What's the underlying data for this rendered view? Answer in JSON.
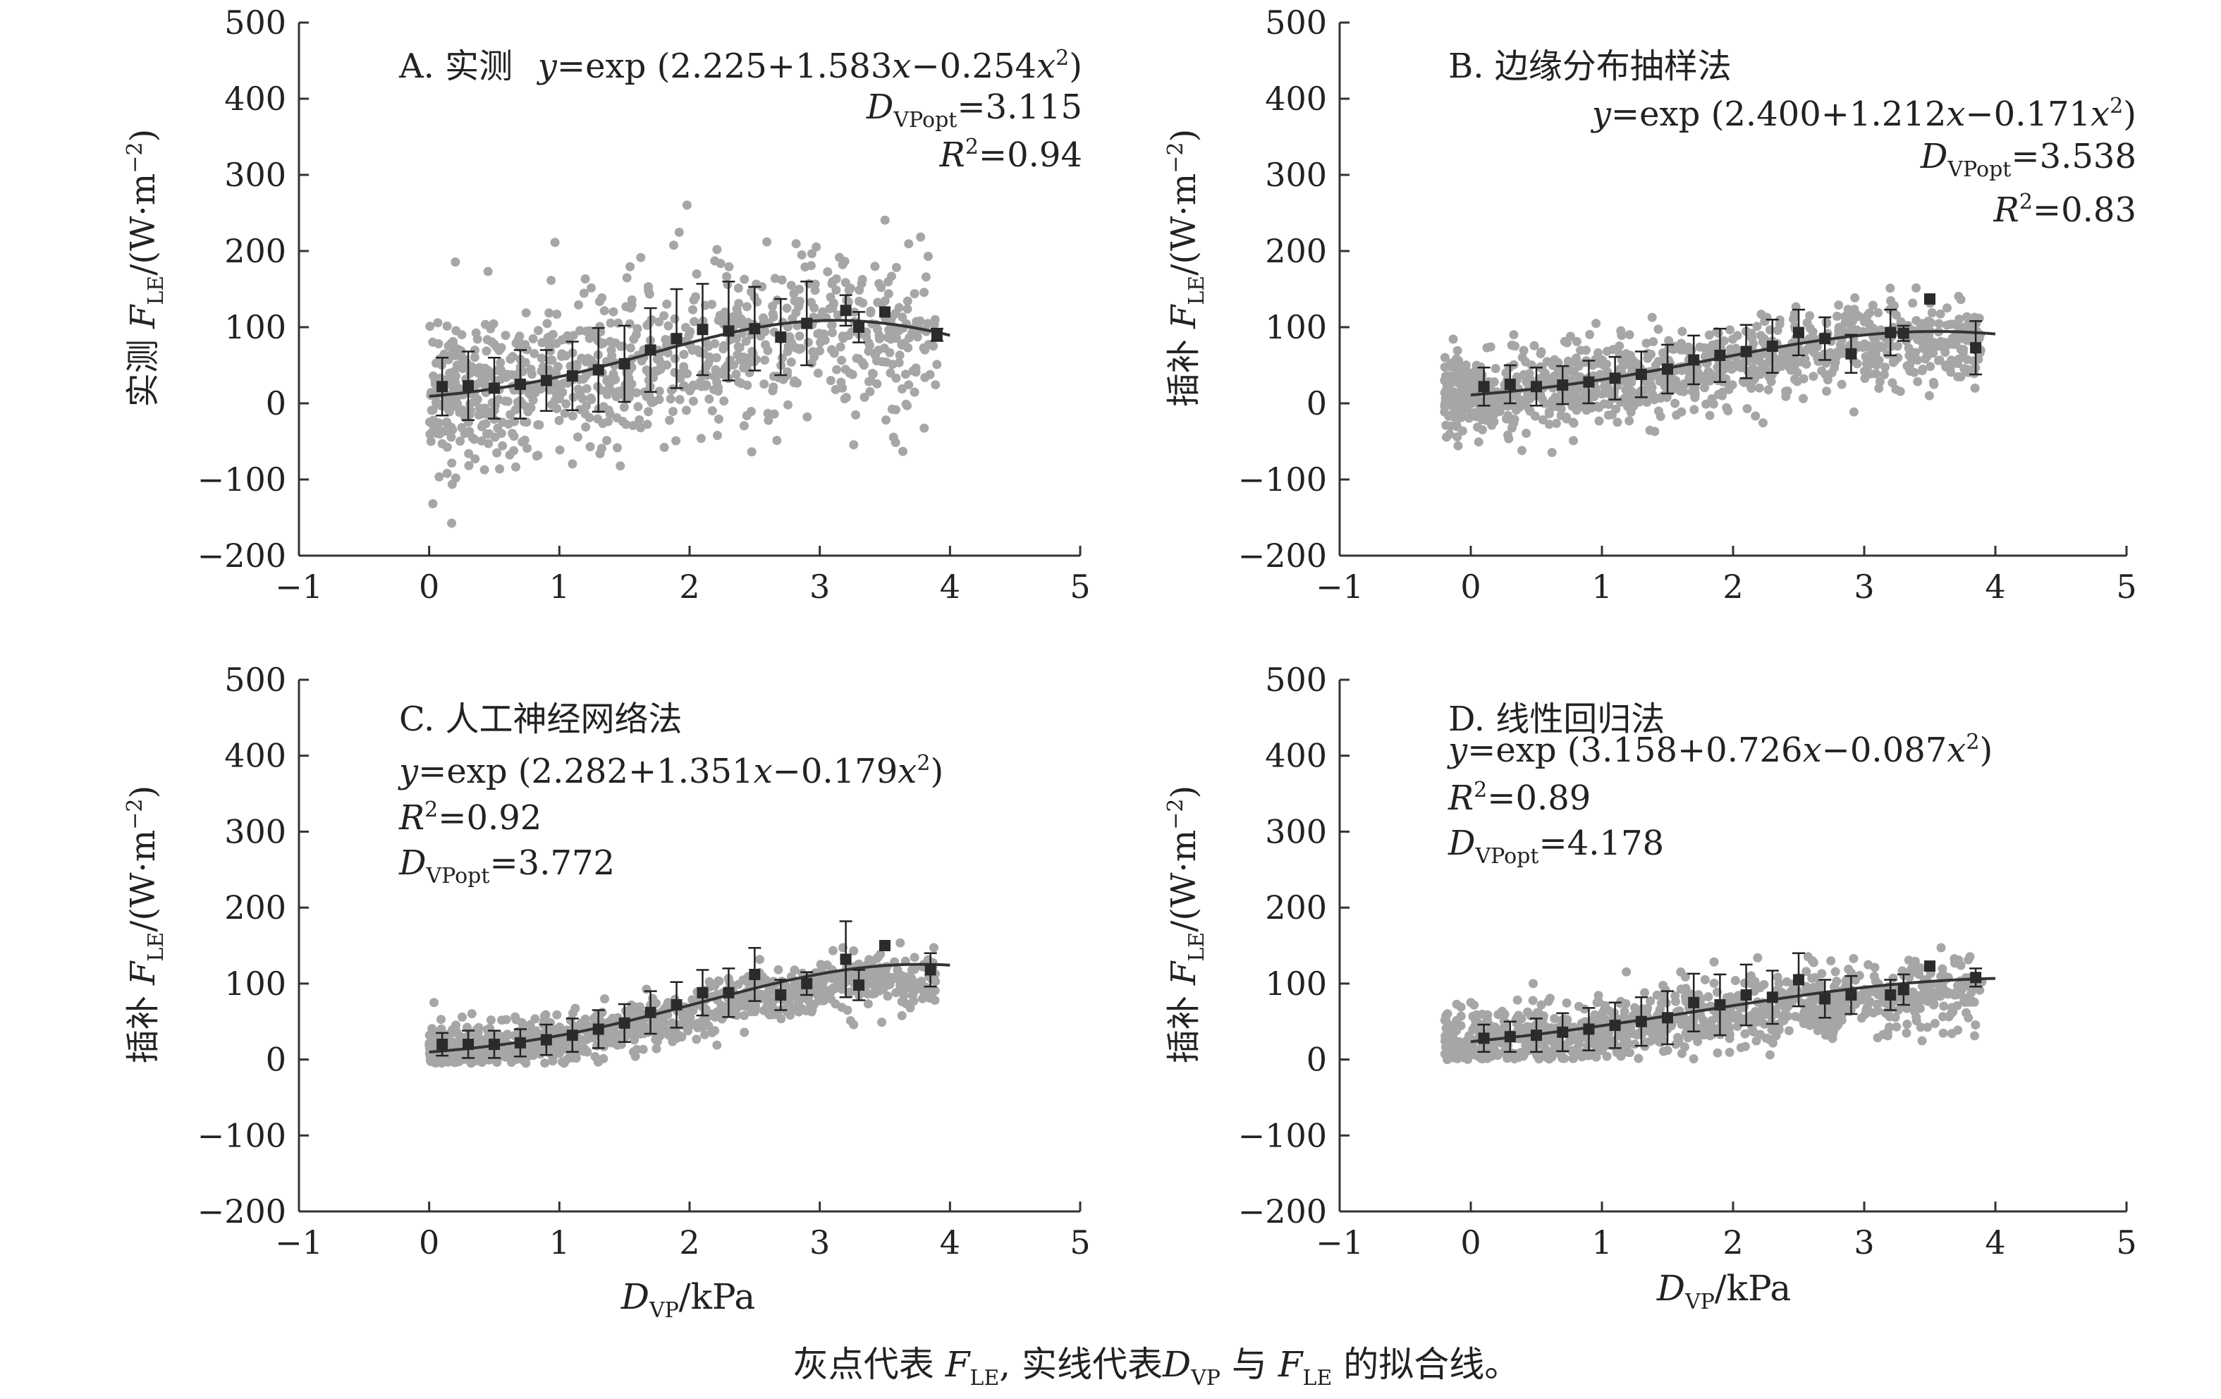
{
  "chart_data": [
    {
      "type": "scatter",
      "panel_title": "A. 实测",
      "ylabel": {
        "prefix": "实测 ",
        "var": "F",
        "sub": "LE",
        "unit": "/(W·m",
        "exp": "−2",
        "close": ")"
      },
      "xlabel": {
        "var": "D",
        "sub": "VP",
        "unit": "/kPa"
      },
      "xlim": [
        -1,
        5
      ],
      "ylim": [
        -200,
        500
      ],
      "xticks": [
        "−1",
        "0",
        "1",
        "2",
        "3",
        "4",
        "5"
      ],
      "yticks": [
        "500",
        "400",
        "300",
        "200",
        "100",
        "0",
        "−100",
        "−200"
      ],
      "annotations": {
        "eq": {
          "y": "y",
          "eq_mid": "=exp (2.225+1.583",
          "x1": "x",
          "eq_mid2": "−0.254",
          "x2": "x",
          "pow": "2",
          "end": ")"
        },
        "dvp": {
          "var": "D",
          "sub": "VPopt",
          "val": "=3.115"
        },
        "r2": {
          "var": "R",
          "pow": "2",
          "val": "=0.94"
        }
      },
      "fit": {
        "a": 2.225,
        "b": 1.583,
        "c": -0.254,
        "x_range": [
          0.0,
          4.0
        ]
      },
      "binned_means": [
        {
          "x": 0.1,
          "y": 22,
          "err": 38
        },
        {
          "x": 0.3,
          "y": 23,
          "err": 45
        },
        {
          "x": 0.5,
          "y": 20,
          "err": 40
        },
        {
          "x": 0.7,
          "y": 25,
          "err": 45
        },
        {
          "x": 0.9,
          "y": 30,
          "err": 40
        },
        {
          "x": 1.1,
          "y": 36,
          "err": 45
        },
        {
          "x": 1.3,
          "y": 44,
          "err": 55
        },
        {
          "x": 1.5,
          "y": 52,
          "err": 50
        },
        {
          "x": 1.7,
          "y": 70,
          "err": 55
        },
        {
          "x": 1.9,
          "y": 85,
          "err": 65
        },
        {
          "x": 2.1,
          "y": 97,
          "err": 60
        },
        {
          "x": 2.3,
          "y": 95,
          "err": 65
        },
        {
          "x": 2.5,
          "y": 98,
          "err": 55
        },
        {
          "x": 2.7,
          "y": 87,
          "err": 50
        },
        {
          "x": 2.9,
          "y": 105,
          "err": 55
        },
        {
          "x": 3.2,
          "y": 122,
          "err": 20
        },
        {
          "x": 3.3,
          "y": 100,
          "err": 20
        },
        {
          "x": 3.5,
          "y": 120,
          "err": 0
        },
        {
          "x": 3.9,
          "y": 90,
          "err": 8
        }
      ],
      "scatter": {
        "x_range": [
          0.0,
          3.9
        ],
        "spread": 70,
        "y_min": -185,
        "y_max": 375,
        "n": 900
      },
      "colors": {
        "points": "#a6a6a6",
        "means": "#2b2b2b",
        "line": "#333333"
      }
    },
    {
      "type": "scatter",
      "panel_title": "B. 边缘分布抽样法",
      "ylabel": {
        "prefix": "插补 ",
        "var": "F",
        "sub": "LE",
        "unit": "/(W·m",
        "exp": "−2",
        "close": ")"
      },
      "xlabel": {
        "var": "D",
        "sub": "VP",
        "unit": "/kPa"
      },
      "xlim": [
        -1,
        5
      ],
      "ylim": [
        -200,
        500
      ],
      "xticks": [
        "−1",
        "0",
        "1",
        "2",
        "3",
        "4",
        "5"
      ],
      "yticks": [
        "500",
        "400",
        "300",
        "200",
        "100",
        "0",
        "−100",
        "−200"
      ],
      "annotations": {
        "eq": {
          "y": "y",
          "eq_mid": "=exp (2.400+1.212",
          "x1": "x",
          "eq_mid2": "−0.171",
          "x2": "x",
          "pow": "2",
          "end": ")"
        },
        "dvp": {
          "var": "D",
          "sub": "VPopt",
          "val": "=3.538"
        },
        "r2": {
          "var": "R",
          "pow": "2",
          "val": "=0.83"
        }
      },
      "fit": {
        "a": 2.4,
        "b": 1.212,
        "c": -0.171,
        "x_range": [
          0.0,
          4.0
        ]
      },
      "binned_means": [
        {
          "x": 0.1,
          "y": 22,
          "err": 25
        },
        {
          "x": 0.3,
          "y": 25,
          "err": 25
        },
        {
          "x": 0.5,
          "y": 22,
          "err": 25
        },
        {
          "x": 0.7,
          "y": 24,
          "err": 25
        },
        {
          "x": 0.9,
          "y": 28,
          "err": 28
        },
        {
          "x": 1.1,
          "y": 33,
          "err": 28
        },
        {
          "x": 1.3,
          "y": 38,
          "err": 30
        },
        {
          "x": 1.5,
          "y": 45,
          "err": 32
        },
        {
          "x": 1.7,
          "y": 57,
          "err": 32
        },
        {
          "x": 1.9,
          "y": 63,
          "err": 35
        },
        {
          "x": 2.1,
          "y": 68,
          "err": 35
        },
        {
          "x": 2.3,
          "y": 75,
          "err": 35
        },
        {
          "x": 2.5,
          "y": 93,
          "err": 30
        },
        {
          "x": 2.7,
          "y": 85,
          "err": 28
        },
        {
          "x": 2.9,
          "y": 65,
          "err": 25
        },
        {
          "x": 3.2,
          "y": 93,
          "err": 30
        },
        {
          "x": 3.3,
          "y": 92,
          "err": 10
        },
        {
          "x": 3.5,
          "y": 137,
          "err": 0
        },
        {
          "x": 3.85,
          "y": 73,
          "err": 35
        }
      ],
      "scatter": {
        "x_range": [
          -0.2,
          3.9
        ],
        "spread": 35,
        "y_min": -135,
        "y_max": 245,
        "n": 1100
      },
      "colors": {
        "points": "#a6a6a6",
        "means": "#2b2b2b",
        "line": "#333333"
      }
    },
    {
      "type": "scatter",
      "panel_title": "C. 人工神经网络法",
      "ylabel": {
        "prefix": "插补 ",
        "var": "F",
        "sub": "LE",
        "unit": "/(W·m",
        "exp": "−2",
        "close": ")"
      },
      "xlabel": {
        "var": "D",
        "sub": "VP",
        "unit": "/kPa"
      },
      "xlim": [
        -1,
        5
      ],
      "ylim": [
        -200,
        500
      ],
      "xticks": [
        "−1",
        "0",
        "1",
        "2",
        "3",
        "4",
        "5"
      ],
      "yticks": [
        "500",
        "400",
        "300",
        "200",
        "100",
        "0",
        "−100",
        "−200"
      ],
      "annotations": {
        "eq": {
          "y": "y",
          "eq_mid": "=exp (2.282+1.351",
          "x1": "x",
          "eq_mid2": "−0.179",
          "x2": "x",
          "pow": "2",
          "end": ")"
        },
        "dvp": {
          "var": "D",
          "sub": "VPopt",
          "val": "=3.772"
        },
        "r2": {
          "var": "R",
          "pow": "2",
          "val": "=0.92"
        }
      },
      "fit": {
        "a": 2.282,
        "b": 1.351,
        "c": -0.179,
        "x_range": [
          0.0,
          4.0
        ]
      },
      "binned_means": [
        {
          "x": 0.1,
          "y": 20,
          "err": 15
        },
        {
          "x": 0.3,
          "y": 20,
          "err": 18
        },
        {
          "x": 0.5,
          "y": 20,
          "err": 18
        },
        {
          "x": 0.7,
          "y": 22,
          "err": 18
        },
        {
          "x": 0.9,
          "y": 26,
          "err": 20
        },
        {
          "x": 1.1,
          "y": 32,
          "err": 22
        },
        {
          "x": 1.3,
          "y": 40,
          "err": 25
        },
        {
          "x": 1.5,
          "y": 48,
          "err": 25
        },
        {
          "x": 1.7,
          "y": 62,
          "err": 28
        },
        {
          "x": 1.9,
          "y": 72,
          "err": 30
        },
        {
          "x": 2.1,
          "y": 88,
          "err": 30
        },
        {
          "x": 2.3,
          "y": 88,
          "err": 32
        },
        {
          "x": 2.5,
          "y": 112,
          "err": 35
        },
        {
          "x": 2.7,
          "y": 85,
          "err": 20
        },
        {
          "x": 2.9,
          "y": 100,
          "err": 15
        },
        {
          "x": 3.2,
          "y": 132,
          "err": 50
        },
        {
          "x": 3.3,
          "y": 98,
          "err": 20
        },
        {
          "x": 3.5,
          "y": 150,
          "err": 0
        },
        {
          "x": 3.85,
          "y": 118,
          "err": 22
        }
      ],
      "scatter": {
        "x_range": [
          0.0,
          3.9
        ],
        "spread": 22,
        "y_min": -5,
        "y_max": 190,
        "n": 1000
      },
      "colors": {
        "points": "#a6a6a6",
        "means": "#2b2b2b",
        "line": "#333333"
      }
    },
    {
      "type": "scatter",
      "panel_title": "D. 线性回归法",
      "ylabel": {
        "prefix": "插补 ",
        "var": "F",
        "sub": "LE",
        "unit": "/(W·m",
        "exp": "−2",
        "close": ")"
      },
      "xlabel": {
        "var": "D",
        "sub": "VP",
        "unit": "/kPa"
      },
      "xlim": [
        -1,
        5
      ],
      "ylim": [
        -200,
        500
      ],
      "xticks": [
        "−1",
        "0",
        "1",
        "2",
        "3",
        "4",
        "5"
      ],
      "yticks": [
        "500",
        "400",
        "300",
        "200",
        "100",
        "0",
        "−100",
        "−200"
      ],
      "annotations": {
        "eq": {
          "y": "y",
          "eq_mid": "=exp (3.158+0.726",
          "x1": "x",
          "eq_mid2": "−0.087",
          "x2": "x",
          "pow": "2",
          "end": ")"
        },
        "dvp": {
          "var": "D",
          "sub": "VPopt",
          "val": "=4.178"
        },
        "r2": {
          "var": "R",
          "pow": "2",
          "val": "=0.89"
        }
      },
      "fit": {
        "a": 3.158,
        "b": 0.726,
        "c": -0.087,
        "x_range": [
          0.0,
          4.0
        ]
      },
      "binned_means": [
        {
          "x": 0.1,
          "y": 28,
          "err": 18
        },
        {
          "x": 0.3,
          "y": 30,
          "err": 20
        },
        {
          "x": 0.5,
          "y": 32,
          "err": 22
        },
        {
          "x": 0.7,
          "y": 36,
          "err": 25
        },
        {
          "x": 0.9,
          "y": 40,
          "err": 28
        },
        {
          "x": 1.1,
          "y": 45,
          "err": 30
        },
        {
          "x": 1.3,
          "y": 50,
          "err": 32
        },
        {
          "x": 1.5,
          "y": 55,
          "err": 35
        },
        {
          "x": 1.7,
          "y": 75,
          "err": 38
        },
        {
          "x": 1.9,
          "y": 72,
          "err": 40
        },
        {
          "x": 2.1,
          "y": 85,
          "err": 40
        },
        {
          "x": 2.3,
          "y": 82,
          "err": 35
        },
        {
          "x": 2.5,
          "y": 105,
          "err": 35
        },
        {
          "x": 2.7,
          "y": 80,
          "err": 25
        },
        {
          "x": 2.9,
          "y": 85,
          "err": 25
        },
        {
          "x": 3.2,
          "y": 85,
          "err": 20
        },
        {
          "x": 3.3,
          "y": 92,
          "err": 20
        },
        {
          "x": 3.5,
          "y": 123,
          "err": 0
        },
        {
          "x": 3.85,
          "y": 108,
          "err": 12
        }
      ],
      "scatter": {
        "x_range": [
          -0.2,
          3.9
        ],
        "spread": 30,
        "y_min": 0,
        "y_max": 190,
        "n": 1000
      },
      "colors": {
        "points": "#a6a6a6",
        "means": "#2b2b2b",
        "line": "#333333"
      }
    }
  ],
  "caption": {
    "t1": "灰点代表 ",
    "v1": "F",
    "s1": "LE",
    "t2": ", 实线代表",
    "v2": "D",
    "s2": "VP",
    "t3": " 与 ",
    "v3": "F",
    "s3": "LE",
    "t4": " 的拟合线。"
  }
}
